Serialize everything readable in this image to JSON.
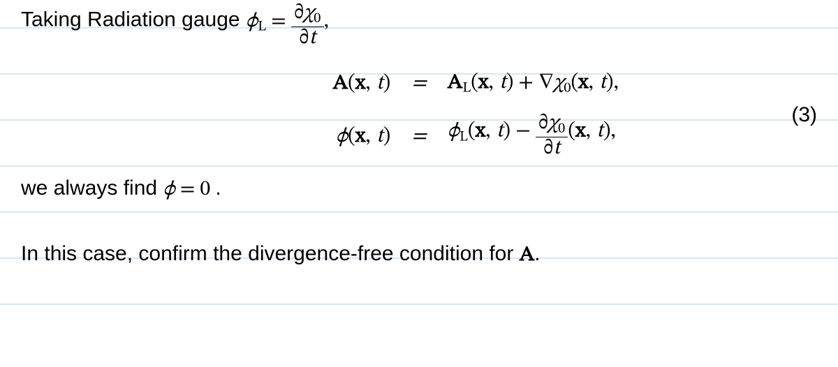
{
  "colors": {
    "text": "#000000",
    "background": "#ffffff",
    "rule_line": "#d8e6f3"
  },
  "typography": {
    "body_font": "sans-serif",
    "body_fontsize_pt": 22,
    "math_font": "serif",
    "math_fontsize_pt": 22
  },
  "line1": {
    "lead": "Taking Radiation gauge ",
    "phi": "ϕ",
    "sub_L": "L",
    "eq": " = ",
    "frac_num": {
      "partial": "∂",
      "chi": "χ",
      "sub0": "0"
    },
    "frac_den": {
      "partial": "∂",
      "t": "t"
    },
    "trail": ","
  },
  "eqnblock": {
    "number": "(3)",
    "row1": {
      "lhs": {
        "A": "A",
        "open": "(",
        "x": "x",
        "comma": ",",
        "t": "t",
        "close": ")"
      },
      "eq": "=",
      "rhs": {
        "A": "A",
        "subL": "L",
        "open": "(",
        "x": "x",
        "comma": ",",
        "t": "t",
        "close": ")",
        "plus": " + ",
        "nabla": "∇",
        "chi": "χ",
        "sub0": "0",
        "open2": "(",
        "x2": "x",
        "comma2": ",",
        "t2": "t",
        "close2": "),"
      }
    },
    "row2": {
      "lhs": {
        "phi": "ϕ",
        "open": "(",
        "x": "x",
        "comma": ",",
        "t": "t",
        "close": ")"
      },
      "eq": "=",
      "rhs": {
        "phi": "ϕ",
        "subL": "L",
        "open": "(",
        "x": "x",
        "comma": ",",
        "t": "t",
        "close": ")",
        "minus": " − ",
        "frac_num": {
          "partial": "∂",
          "chi": "χ",
          "sub0": "0"
        },
        "frac_den": {
          "partial": "∂",
          "t": "t"
        },
        "open2": "(",
        "x2": "x",
        "comma2": ",",
        "t2": "t",
        "close2": "),"
      }
    }
  },
  "line3": {
    "lead": "we always find ",
    "phi": "ϕ",
    "eq": " = ",
    "zero": "0",
    "period": "."
  },
  "line4": {
    "lead": "In this case, confirm the divergence-free condition for ",
    "A": "A",
    "period": "."
  }
}
